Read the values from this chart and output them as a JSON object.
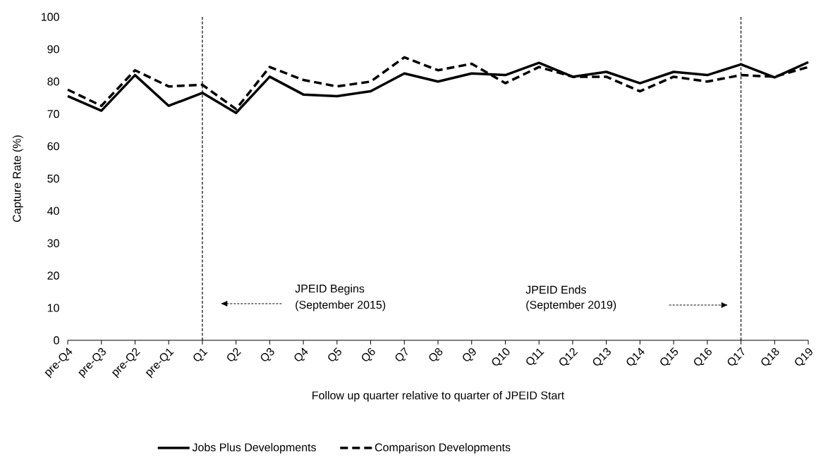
{
  "chart_data": {
    "type": "line",
    "xlabel": "Follow up quarter relative to quarter of JPEID  Start",
    "ylabel": "Capture Rate (%)",
    "categories": [
      "pre-Q4",
      "pre-Q3",
      "pre-Q2",
      "pre-Q1",
      "Q1",
      "Q2",
      "Q3",
      "Q4",
      "Q5",
      "Q6",
      "Q7",
      "Q8",
      "Q9",
      "Q10",
      "Q11",
      "Q12",
      "Q13",
      "Q14",
      "Q15",
      "Q16",
      "Q17",
      "Q18",
      "Q19"
    ],
    "series": [
      {
        "name": "Jobs Plus Developments",
        "color": "#000000",
        "line_style": "solid",
        "values": [
          75.5,
          71,
          82,
          72.5,
          76.5,
          70.3,
          81.5,
          76,
          75.5,
          77,
          82.5,
          80,
          82.5,
          82,
          85.8,
          81.5,
          83,
          79.5,
          83,
          82,
          85.3,
          81.3,
          86
        ]
      },
      {
        "name": "Comparison Developments",
        "color": "#000000",
        "line_style": "dashed",
        "values": [
          77.5,
          72.5,
          83.5,
          78.5,
          79,
          71.5,
          84.5,
          80.5,
          78.5,
          80,
          87.5,
          83.5,
          85.5,
          79.5,
          84.5,
          81.5,
          81.5,
          77,
          81.5,
          80,
          82,
          81.5,
          84.5
        ]
      }
    ],
    "ylim": [
      0,
      100
    ],
    "yticks": [
      0,
      10,
      20,
      30,
      40,
      50,
      60,
      70,
      80,
      90,
      100
    ],
    "ref_lines": [
      {
        "axis": "x",
        "value": "Q1",
        "line_style": "dashed",
        "color": "#000000"
      },
      {
        "axis": "x",
        "value": "Q17",
        "line_style": "dashed",
        "color": "#000000"
      }
    ],
    "annotations": [
      "JPEID  Begins",
      "(September  2015)",
      "JPEID  Ends",
      "(September  2019)"
    ],
    "legend": "bottom"
  }
}
